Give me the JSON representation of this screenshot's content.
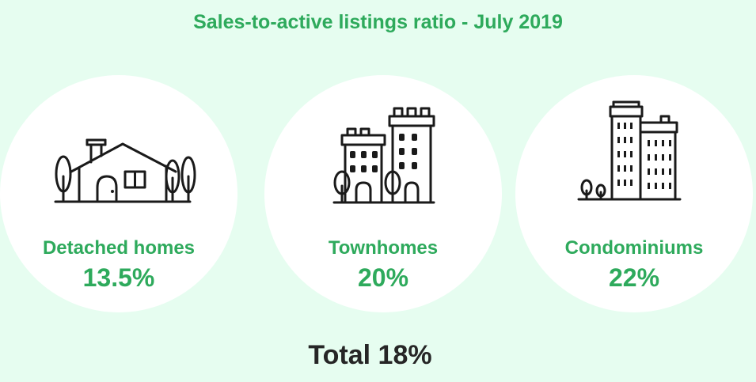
{
  "title": "Sales-to-active listings ratio - July 2019",
  "categories": [
    {
      "label": "Detached homes",
      "value": "13.5%",
      "icon": "detached-house-icon"
    },
    {
      "label": "Townhomes",
      "value": "20%",
      "icon": "townhomes-icon"
    },
    {
      "label": "Condominiums",
      "value": "22%",
      "icon": "condominiums-icon"
    }
  ],
  "total": "Total 18%",
  "colors": {
    "background": "#e6fdf0",
    "accent": "#2eaa5c",
    "text_dark": "#262626",
    "circle": "#ffffff"
  }
}
